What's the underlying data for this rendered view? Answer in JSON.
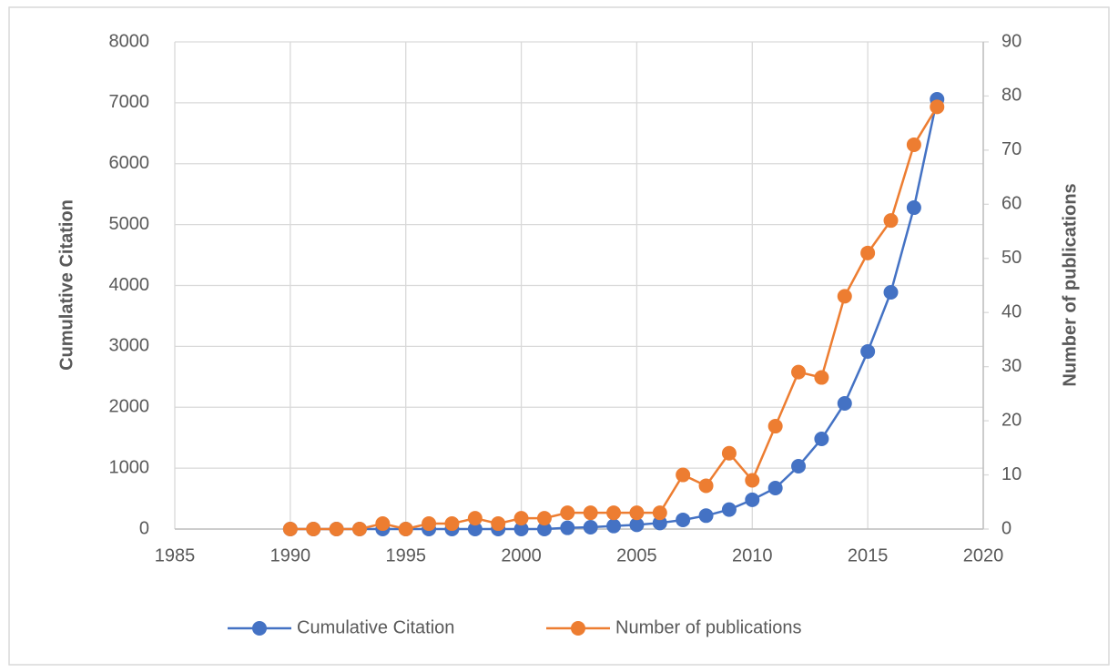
{
  "chart_data": {
    "type": "line",
    "x": [
      1990,
      1991,
      1992,
      1993,
      1994,
      1995,
      1996,
      1997,
      1998,
      1999,
      2000,
      2001,
      2002,
      2003,
      2004,
      2005,
      2006,
      2007,
      2008,
      2009,
      2010,
      2011,
      2012,
      2013,
      2014,
      2015,
      2016,
      2017,
      2018
    ],
    "series": [
      {
        "name": "Cumulative Citation",
        "color": "#4472c4",
        "axis": "y",
        "values": [
          0,
          0,
          0,
          0,
          0,
          0,
          0,
          0,
          0,
          0,
          0,
          0,
          20,
          30,
          50,
          70,
          100,
          150,
          220,
          320,
          480,
          673,
          1032,
          1480,
          2064,
          2916,
          3888,
          5278,
          7058
        ]
      },
      {
        "name": "Number of publications",
        "color": "#ed7d31",
        "axis": "y2",
        "values": [
          0,
          0,
          0,
          0,
          1,
          0,
          1,
          1,
          2,
          1,
          2,
          2,
          3,
          3,
          3,
          3,
          3,
          10,
          8,
          14,
          9,
          19,
          29,
          28,
          43,
          51,
          57,
          71,
          78
        ]
      }
    ],
    "xlim": [
      1985,
      2020
    ],
    "xticks": [
      1985,
      1990,
      1995,
      2000,
      2005,
      2010,
      2015,
      2020
    ],
    "ylim": [
      0,
      8000
    ],
    "yticks": [
      0,
      1000,
      2000,
      3000,
      4000,
      5000,
      6000,
      7000,
      8000
    ],
    "y2lim": [
      0,
      90
    ],
    "y2ticks": [
      0,
      10,
      20,
      30,
      40,
      50,
      60,
      70,
      80,
      90
    ],
    "ylabel": "Cumulative Citation",
    "y2label": "Number of publications",
    "grid": true,
    "legend": "bottom"
  }
}
